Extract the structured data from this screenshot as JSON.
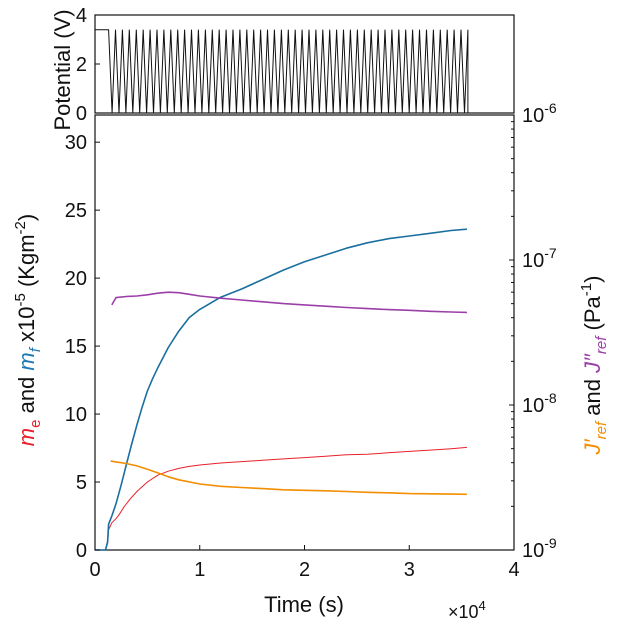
{
  "chart_data": [
    {
      "type": "line",
      "ylabel": "Potential (V)",
      "xlim": [
        0,
        40000
      ],
      "ylim": [
        0,
        4
      ],
      "yticks": [
        "0",
        "2",
        "4"
      ],
      "grid": false,
      "series": [
        {
          "color": "#111111",
          "shape": "triangle-wave",
          "x_start": 0,
          "x_end": 35600,
          "cycles": 52,
          "v_max": 3.4,
          "v_min": 0,
          "hold_until": 1300
        }
      ]
    },
    {
      "type": "line",
      "xlabel": "Time (s)",
      "x_exponent": "×10",
      "x_exponent_power": "4",
      "xlim": [
        0,
        40000
      ],
      "xticks": [
        "0",
        "1",
        "2",
        "3",
        "4"
      ],
      "left_axis": {
        "label_parts": [
          {
            "text": "m",
            "color": "#e8202a",
            "style": "italic"
          },
          {
            "text": "e",
            "color": "#e8202a",
            "sub": true
          },
          {
            "text": " and ",
            "color": "#111111"
          },
          {
            "text": "m",
            "color": "#1f77b4",
            "style": "italic"
          },
          {
            "text": "f",
            "color": "#1f77b4",
            "sub": true,
            "style": "italic"
          },
          {
            "text": " x10",
            "color": "#111111"
          },
          {
            "text": "-5",
            "color": "#111111",
            "sup": true
          },
          {
            "text": " (Kgm",
            "color": "#111111"
          },
          {
            "text": "-2",
            "color": "#111111",
            "sup": true
          },
          {
            "text": ")",
            "color": "#111111"
          }
        ],
        "ylim": [
          0,
          32
        ],
        "yticks": [
          "0",
          "5",
          "10",
          "15",
          "20",
          "25",
          "30"
        ]
      },
      "right_axis": {
        "label_parts": [
          {
            "text": "J′",
            "color": "#f28e00",
            "style": "italic"
          },
          {
            "text": "ref",
            "color": "#f28e00",
            "sub": true,
            "style": "italic"
          },
          {
            "text": " and ",
            "color": "#111111"
          },
          {
            "text": "J″",
            "color": "#9b3fa8",
            "style": "italic"
          },
          {
            "text": "ref",
            "color": "#9b3fa8",
            "sub": true,
            "style": "italic"
          },
          {
            "text": " (Pa",
            "color": "#111111"
          },
          {
            "text": "-1",
            "color": "#111111",
            "sup": true
          },
          {
            "text": ")",
            "color": "#111111"
          }
        ],
        "scale": "log",
        "ylim": [
          1e-09,
          1e-06
        ],
        "ytick_base": "10",
        "ytick_powers": [
          "-9",
          "-8",
          "-7",
          "-6"
        ]
      },
      "series": [
        {
          "name": "m_e",
          "axis": "left",
          "color": "#e8202a",
          "x": [
            0,
            1000,
            1200,
            1300,
            1600,
            2000,
            2300,
            2800,
            3300,
            4000,
            5000,
            6000,
            7000,
            8000,
            9000,
            10000,
            12000,
            14000,
            16000,
            18000,
            20000,
            22000,
            24000,
            26000,
            28000,
            30000,
            32000,
            34000,
            35500
          ],
          "y": [
            0,
            0,
            0.5,
            1.5,
            2.0,
            2.3,
            2.6,
            3.2,
            3.7,
            4.3,
            5.0,
            5.5,
            5.8,
            6.0,
            6.15,
            6.25,
            6.4,
            6.5,
            6.6,
            6.7,
            6.8,
            6.9,
            7.0,
            7.05,
            7.15,
            7.25,
            7.35,
            7.45,
            7.55
          ]
        },
        {
          "name": "m_f",
          "axis": "left",
          "color": "#1a6fa0",
          "x": [
            0,
            1000,
            1200,
            1300,
            1600,
            2000,
            2500,
            3000,
            3500,
            4000,
            4500,
            5000,
            5500,
            6000,
            7000,
            8000,
            9000,
            10000,
            12000,
            14000,
            16000,
            18000,
            20000,
            22000,
            24000,
            26000,
            28000,
            30000,
            32000,
            34000,
            35500
          ],
          "y": [
            0,
            0,
            0.6,
            1.9,
            2.5,
            3.4,
            4.8,
            6.3,
            7.8,
            9.2,
            10.5,
            11.7,
            12.6,
            13.4,
            14.9,
            16.1,
            17.1,
            17.7,
            18.6,
            19.2,
            19.9,
            20.6,
            21.2,
            21.7,
            22.2,
            22.6,
            22.9,
            23.1,
            23.3,
            23.5,
            23.6
          ]
        },
        {
          "name": "J′_ref",
          "axis": "right",
          "color": "#f28e00",
          "x": [
            1500,
            2000,
            3000,
            4000,
            5000,
            6000,
            7000,
            8000,
            10000,
            12000,
            14000,
            16000,
            18000,
            20000,
            22000,
            24000,
            26000,
            28000,
            30000,
            32000,
            34000,
            35500
          ],
          "y": [
            4.1e-09,
            4.05e-09,
            3.95e-09,
            3.8e-09,
            3.6e-09,
            3.4e-09,
            3.2e-09,
            3.05e-09,
            2.85e-09,
            2.75e-09,
            2.7e-09,
            2.65e-09,
            2.6e-09,
            2.58e-09,
            2.56e-09,
            2.53e-09,
            2.5e-09,
            2.48e-09,
            2.45e-09,
            2.44e-09,
            2.43e-09,
            2.42e-09
          ]
        },
        {
          "name": "J″_ref",
          "axis": "right",
          "color": "#9b3fa8",
          "x": [
            1600,
            2000,
            3000,
            4000,
            5000,
            6000,
            7000,
            8000,
            9000,
            10000,
            12000,
            14000,
            16000,
            18000,
            20000,
            22000,
            24000,
            26000,
            28000,
            30000,
            32000,
            34000,
            35500
          ],
          "y": [
            4.9e-08,
            5.5e-08,
            5.6e-08,
            5.65e-08,
            5.75e-08,
            5.9e-08,
            6e-08,
            5.95e-08,
            5.8e-08,
            5.65e-08,
            5.45e-08,
            5.3e-08,
            5.15e-08,
            5e-08,
            4.9e-08,
            4.8e-08,
            4.7e-08,
            4.62e-08,
            4.55e-08,
            4.5e-08,
            4.43e-08,
            4.38e-08,
            4.35e-08
          ]
        }
      ]
    }
  ]
}
